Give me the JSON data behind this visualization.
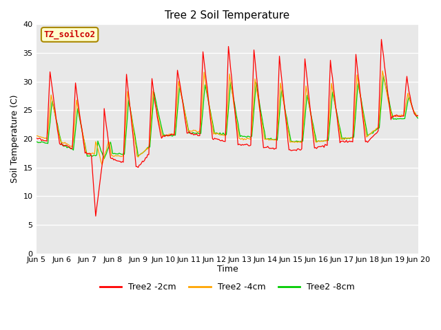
{
  "title": "Tree 2 Soil Temperature",
  "ylabel": "Soil Temperature (C)",
  "xlabel": "Time",
  "ylim": [
    0,
    40
  ],
  "xlim": [
    0,
    360
  ],
  "annotation": "TZ_soilco2",
  "background_color": "#e8e8e8",
  "figure_color": "#ffffff",
  "grid_color": "#ffffff",
  "line_colors": {
    "2cm": "#ff0000",
    "4cm": "#ffa500",
    "8cm": "#00cc00"
  },
  "legend_labels": [
    "Tree2 -2cm",
    "Tree2 -4cm",
    "Tree2 -8cm"
  ],
  "xtick_labels": [
    "Jun 5",
    "Jun 6",
    "Jun 7",
    "Jun 8",
    "Jun 9",
    "Jun 10",
    "Jun 11",
    "Jun 12",
    "Jun 13",
    "Jun 14",
    "Jun 15",
    "Jun 16",
    "Jun 17",
    "Jun 18",
    "Jun 19",
    "Jun 20"
  ],
  "xtick_positions": [
    0,
    24,
    48,
    72,
    96,
    120,
    144,
    168,
    192,
    216,
    240,
    264,
    288,
    312,
    336,
    360
  ],
  "yticks": [
    0,
    5,
    10,
    15,
    20,
    25,
    30,
    35,
    40
  ],
  "title_fontsize": 11,
  "tick_fontsize": 8,
  "label_fontsize": 9
}
